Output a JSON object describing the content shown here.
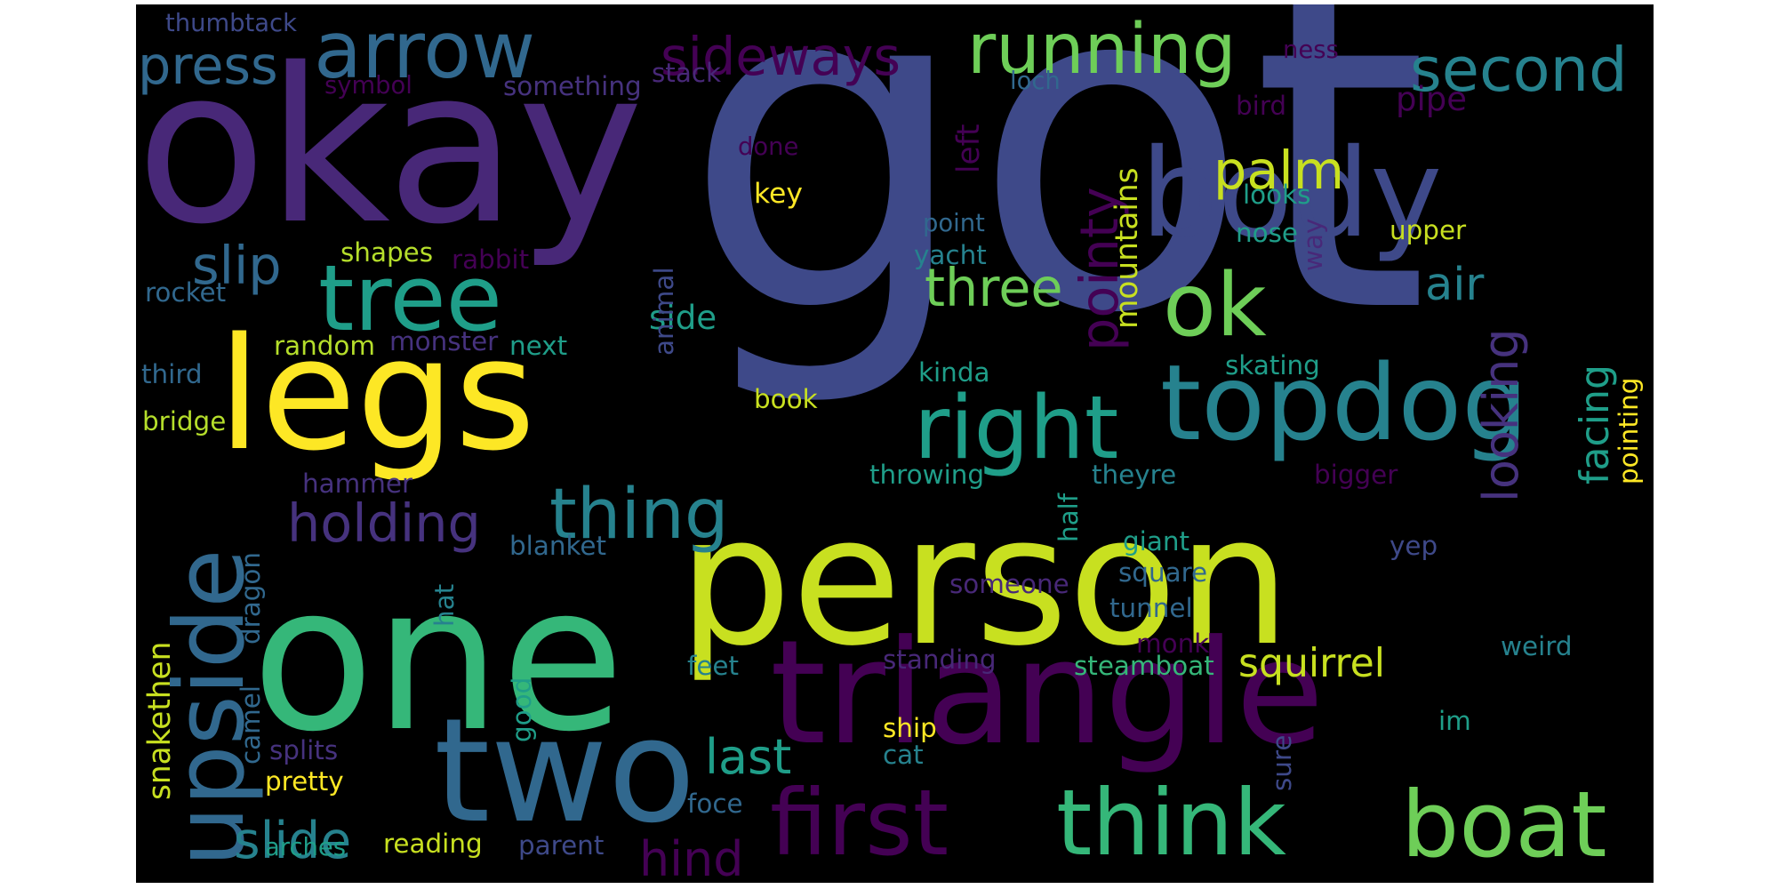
{
  "palette": {
    "d1": "#440154",
    "d2": "#482878",
    "d3": "#3e4989",
    "d4": "#31688e",
    "d5": "#26828e",
    "d6": "#1f9e89",
    "d7": "#35b779",
    "d8": "#6ece58",
    "d9": "#b5de2b",
    "d10": "#c8e020",
    "d11": "#fde725",
    "d12": "#46327e"
  },
  "words": [
    {
      "text": "got",
      "color": "d3"
    },
    {
      "text": "okay",
      "color": "d2"
    },
    {
      "text": "person",
      "color": "d10"
    },
    {
      "text": "one",
      "color": "d7"
    },
    {
      "text": "triangle",
      "color": "d1"
    },
    {
      "text": "legs",
      "color": "d11"
    },
    {
      "text": "two",
      "color": "d4"
    },
    {
      "text": "arrow",
      "color": "d4"
    },
    {
      "text": "body",
      "color": "d3"
    },
    {
      "text": "topdog",
      "color": "d5"
    },
    {
      "text": "upside",
      "color": "d4"
    },
    {
      "text": "tree",
      "color": "d6"
    },
    {
      "text": "first",
      "color": "d1"
    },
    {
      "text": "think",
      "color": "d7"
    },
    {
      "text": "boat",
      "color": "d8"
    },
    {
      "text": "right",
      "color": "d6"
    },
    {
      "text": "ok",
      "color": "d8"
    },
    {
      "text": "running",
      "color": "d8"
    },
    {
      "text": "sideways",
      "color": "d1"
    },
    {
      "text": "second",
      "color": "d5"
    },
    {
      "text": "thing",
      "color": "d5"
    },
    {
      "text": "looking",
      "color": "d12"
    },
    {
      "text": "holding",
      "color": "d12"
    },
    {
      "text": "press",
      "color": "d4"
    },
    {
      "text": "palm",
      "color": "d10"
    },
    {
      "text": "slip",
      "color": "d4"
    },
    {
      "text": "three",
      "color": "d8"
    },
    {
      "text": "pointy",
      "color": "d1"
    },
    {
      "text": "facing",
      "color": "d6"
    },
    {
      "text": "last",
      "color": "d6"
    },
    {
      "text": "hind",
      "color": "d1"
    },
    {
      "text": "slide",
      "color": "d5"
    },
    {
      "text": "air",
      "color": "d5"
    },
    {
      "text": "squirrel",
      "color": "d10"
    },
    {
      "text": "side",
      "color": "d6"
    },
    {
      "text": "thumbtack",
      "color": "d3"
    },
    {
      "text": "symbol",
      "color": "d1"
    },
    {
      "text": "something",
      "color": "d12"
    },
    {
      "text": "stack",
      "color": "d2"
    },
    {
      "text": "loch",
      "color": "d4"
    },
    {
      "text": "ness",
      "color": "d1"
    },
    {
      "text": "bird",
      "color": "d1"
    },
    {
      "text": "pipe",
      "color": "d1"
    },
    {
      "text": "done",
      "color": "d1"
    },
    {
      "text": "left",
      "color": "d1"
    },
    {
      "text": "key",
      "color": "d11"
    },
    {
      "text": "mountains",
      "color": "d10"
    },
    {
      "text": "looks",
      "color": "d6"
    },
    {
      "text": "point",
      "color": "d4"
    },
    {
      "text": "upper",
      "color": "d10"
    },
    {
      "text": "yacht",
      "color": "d5"
    },
    {
      "text": "nose",
      "color": "d6"
    },
    {
      "text": "way",
      "color": "d2"
    },
    {
      "text": "shapes",
      "color": "d9"
    },
    {
      "text": "rabbit",
      "color": "d1"
    },
    {
      "text": "animal",
      "color": "d3"
    },
    {
      "text": "rocket",
      "color": "d4"
    },
    {
      "text": "random",
      "color": "d9"
    },
    {
      "text": "monster",
      "color": "d12"
    },
    {
      "text": "next",
      "color": "d6"
    },
    {
      "text": "third",
      "color": "d4"
    },
    {
      "text": "kinda",
      "color": "d6"
    },
    {
      "text": "skating",
      "color": "d6"
    },
    {
      "text": "pointing",
      "color": "d11"
    },
    {
      "text": "book",
      "color": "d10"
    },
    {
      "text": "bridge",
      "color": "d9"
    },
    {
      "text": "hammer",
      "color": "d12"
    },
    {
      "text": "throwing",
      "color": "d6"
    },
    {
      "text": "theyre",
      "color": "d5"
    },
    {
      "text": "bigger",
      "color": "d1"
    },
    {
      "text": "blanket",
      "color": "d4"
    },
    {
      "text": "half",
      "color": "d6"
    },
    {
      "text": "giant",
      "color": "d6"
    },
    {
      "text": "yep",
      "color": "d3"
    },
    {
      "text": "dragon",
      "color": "d4"
    },
    {
      "text": "hat",
      "color": "d5"
    },
    {
      "text": "someone",
      "color": "d2"
    },
    {
      "text": "square",
      "color": "d4"
    },
    {
      "text": "tunnel",
      "color": "d4"
    },
    {
      "text": "monk",
      "color": "d1"
    },
    {
      "text": "snakethen",
      "color": "d10"
    },
    {
      "text": "camel",
      "color": "d4"
    },
    {
      "text": "good",
      "color": "d6"
    },
    {
      "text": "feet",
      "color": "d5"
    },
    {
      "text": "standing",
      "color": "d2"
    },
    {
      "text": "steamboat",
      "color": "d7"
    },
    {
      "text": "weird",
      "color": "d5"
    },
    {
      "text": "ship",
      "color": "d11"
    },
    {
      "text": "im",
      "color": "d6"
    },
    {
      "text": "splits",
      "color": "d12"
    },
    {
      "text": "cat",
      "color": "d5"
    },
    {
      "text": "sure",
      "color": "d3"
    },
    {
      "text": "pretty",
      "color": "d11"
    },
    {
      "text": "foce",
      "color": "d4"
    },
    {
      "text": "arches",
      "color": "d6"
    },
    {
      "text": "reading",
      "color": "d10"
    },
    {
      "text": "parent",
      "color": "d3"
    }
  ]
}
